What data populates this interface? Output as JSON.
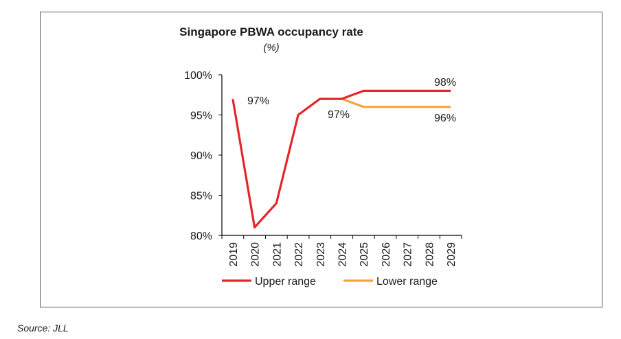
{
  "chart_data": {
    "type": "line",
    "title": "Singapore PBWA occupancy rate",
    "subtitle": "(%)",
    "categories": [
      "2019",
      "2020",
      "2021",
      "2022",
      "2023",
      "2024",
      "2025",
      "2026",
      "2027",
      "2028",
      "2029"
    ],
    "ylim": [
      80,
      100
    ],
    "yticks": [
      80,
      85,
      90,
      95,
      100
    ],
    "ytick_labels": [
      "80%",
      "85%",
      "90%",
      "95%",
      "100%"
    ],
    "grid": false,
    "legend_position": "bottom",
    "series": [
      {
        "name": "Upper range",
        "color": "#e32629",
        "values": [
          97,
          81,
          84,
          95,
          97,
          97,
          98,
          98,
          98,
          98,
          98
        ]
      },
      {
        "name": "Lower range",
        "color": "#f7a233",
        "values": [
          null,
          null,
          null,
          null,
          null,
          97,
          96,
          96,
          96,
          96,
          96
        ]
      }
    ],
    "annotations": [
      {
        "text": "97%"
      },
      {
        "text": "97%"
      },
      {
        "text": "98%"
      },
      {
        "text": "96%"
      }
    ]
  },
  "source": "Source: JLL"
}
